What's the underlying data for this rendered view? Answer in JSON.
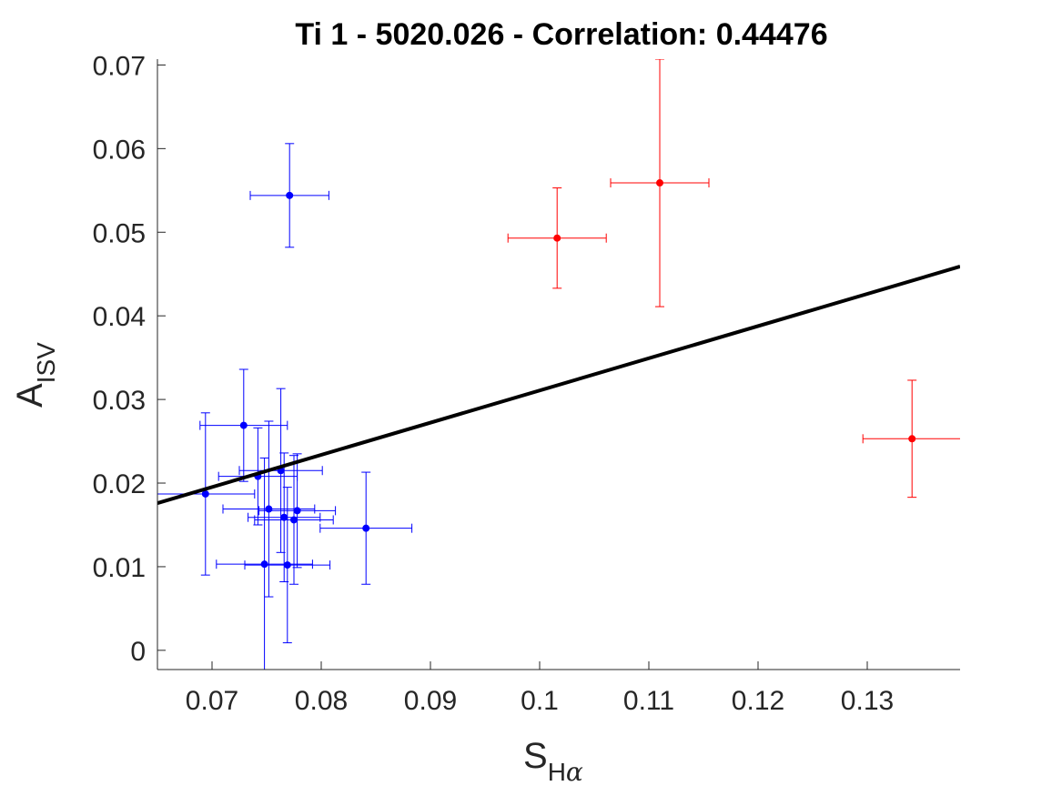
{
  "chart_data": {
    "type": "scatter",
    "title": "Ti 1 - 5020.026 - Correlation: 0.44476",
    "xlabel": {
      "main": "S",
      "sub_latin": "H",
      "sub_greek": "α"
    },
    "ylabel": {
      "main": "A",
      "sub": "ISV"
    },
    "xlim": [
      0.065,
      0.1385
    ],
    "ylim": [
      -0.0023,
      0.0707
    ],
    "xticks": [
      0.07,
      0.08,
      0.09,
      0.1,
      0.11,
      0.12,
      0.13
    ],
    "xtick_labels": [
      "0.07",
      "0.08",
      "0.09",
      "0.1",
      "0.11",
      "0.12",
      "0.13"
    ],
    "yticks": [
      0,
      0.01,
      0.02,
      0.03,
      0.04,
      0.05,
      0.06,
      0.07
    ],
    "ytick_labels": [
      "0",
      "0.01",
      "0.02",
      "0.03",
      "0.04",
      "0.05",
      "0.06",
      "0.07"
    ],
    "grid": false,
    "series": [
      {
        "color": "#0000ff",
        "points": [
          {
            "x": 0.0771,
            "y": 0.0544,
            "xerr": 0.0036,
            "yerr": 0.0062
          },
          {
            "x": 0.0729,
            "y": 0.0269,
            "xerr": 0.004,
            "yerr": 0.0067
          },
          {
            "x": 0.0694,
            "y": 0.0187,
            "xerr": 0.0045,
            "yerr": 0.0097
          },
          {
            "x": 0.0742,
            "y": 0.0208,
            "xerr": 0.0036,
            "yerr": 0.0058
          },
          {
            "x": 0.0763,
            "y": 0.0215,
            "xerr": 0.0038,
            "yerr": 0.0098
          },
          {
            "x": 0.0752,
            "y": 0.0169,
            "xerr": 0.0042,
            "yerr": 0.0105
          },
          {
            "x": 0.0766,
            "y": 0.0159,
            "xerr": 0.0033,
            "yerr": 0.0077
          },
          {
            "x": 0.0775,
            "y": 0.0156,
            "xerr": 0.0036,
            "yerr": 0.0077
          },
          {
            "x": 0.0778,
            "y": 0.0167,
            "xerr": 0.0035,
            "yerr": 0.0068
          },
          {
            "x": 0.0748,
            "y": 0.0103,
            "xerr": 0.0044,
            "yerr": 0.0127
          },
          {
            "x": 0.0769,
            "y": 0.0102,
            "xerr": 0.0039,
            "yerr": 0.0093
          },
          {
            "x": 0.0841,
            "y": 0.0146,
            "xerr": 0.0042,
            "yerr": 0.0067
          }
        ]
      },
      {
        "color": "#ff0000",
        "points": [
          {
            "x": 0.1016,
            "y": 0.0493,
            "xerr": 0.0045,
            "yerr": 0.006
          },
          {
            "x": 0.111,
            "y": 0.0559,
            "xerr": 0.0045,
            "yerr": 0.0148
          },
          {
            "x": 0.1341,
            "y": 0.0253,
            "xerr": 0.0045,
            "yerr": 0.007
          }
        ]
      }
    ],
    "fit_line": {
      "color": "#000000",
      "x": [
        0.065,
        0.1385
      ],
      "y": [
        0.0176,
        0.0459
      ]
    }
  }
}
